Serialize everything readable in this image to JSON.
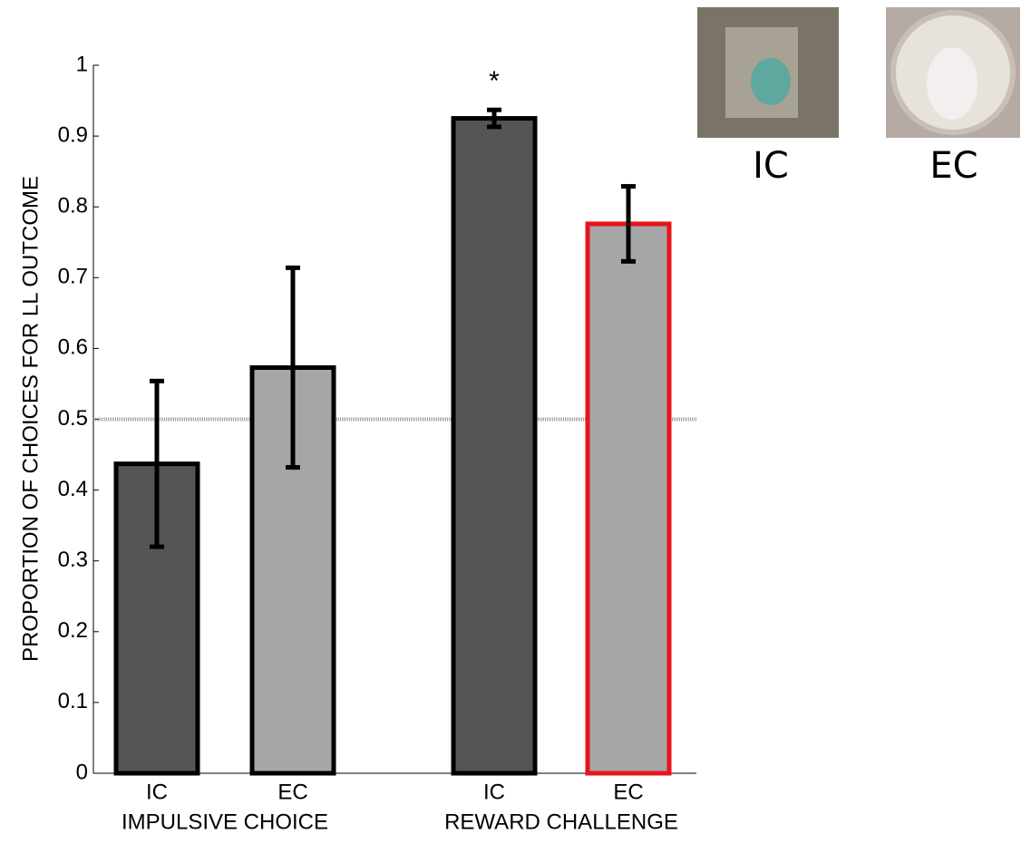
{
  "chart_data": {
    "type": "bar",
    "ylabel": "PROPORTION OF CHOICES FOR LL OUTCOME",
    "categories": [
      "IC",
      "EC",
      "IC",
      "EC"
    ],
    "groups": [
      "IMPULSIVE CHOICE",
      "REWARD CHALLENGE"
    ],
    "values": [
      0.437,
      0.573,
      0.925,
      0.776
    ],
    "errors": [
      0.117,
      0.141,
      0.012,
      0.053
    ],
    "colors": [
      "#555555",
      "#a6a6a6",
      "#555555",
      "#a6a6a6"
    ],
    "edge_colors": [
      "#000000",
      "#000000",
      "#000000",
      "#e8141b"
    ],
    "annotations": [
      null,
      null,
      "*",
      null
    ],
    "reference_line": 0.5,
    "ylim": [
      0,
      1
    ],
    "yticks": [
      0,
      0.1,
      0.2,
      0.3,
      0.4,
      0.5,
      0.6,
      0.7,
      0.8,
      0.9,
      1
    ],
    "image_labels": [
      "IC",
      "EC"
    ]
  }
}
